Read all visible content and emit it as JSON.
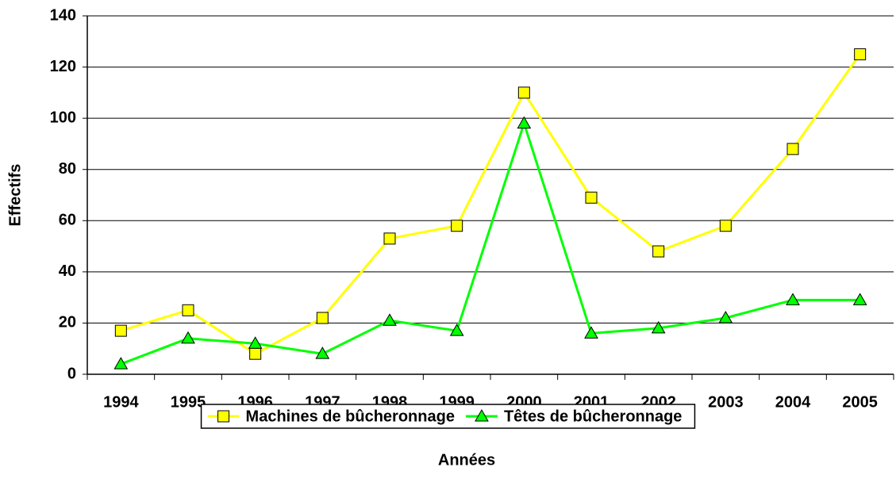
{
  "chart_data": {
    "type": "line",
    "x_label": "Années",
    "y_label": "Effectifs",
    "categories": [
      "1994",
      "1995",
      "1996",
      "1997",
      "1998",
      "1999",
      "2000",
      "2001",
      "2002",
      "2003",
      "2004",
      "2005"
    ],
    "series": [
      {
        "name": "Machines de bûcheronnage",
        "color": "#ffff00",
        "marker": "square",
        "values": [
          17,
          25,
          8,
          22,
          53,
          58,
          110,
          69,
          48,
          58,
          88,
          125
        ]
      },
      {
        "name": "Têtes de bûcheronnage",
        "color": "#00ff00",
        "marker": "triangle",
        "values": [
          4,
          14,
          12,
          8,
          21,
          17,
          98,
          16,
          18,
          22,
          29,
          29
        ]
      }
    ],
    "ylim": [
      0,
      140
    ],
    "yticks": [
      0,
      20,
      40,
      60,
      80,
      100,
      120,
      140
    ],
    "grid": true,
    "legend": "bottom"
  }
}
